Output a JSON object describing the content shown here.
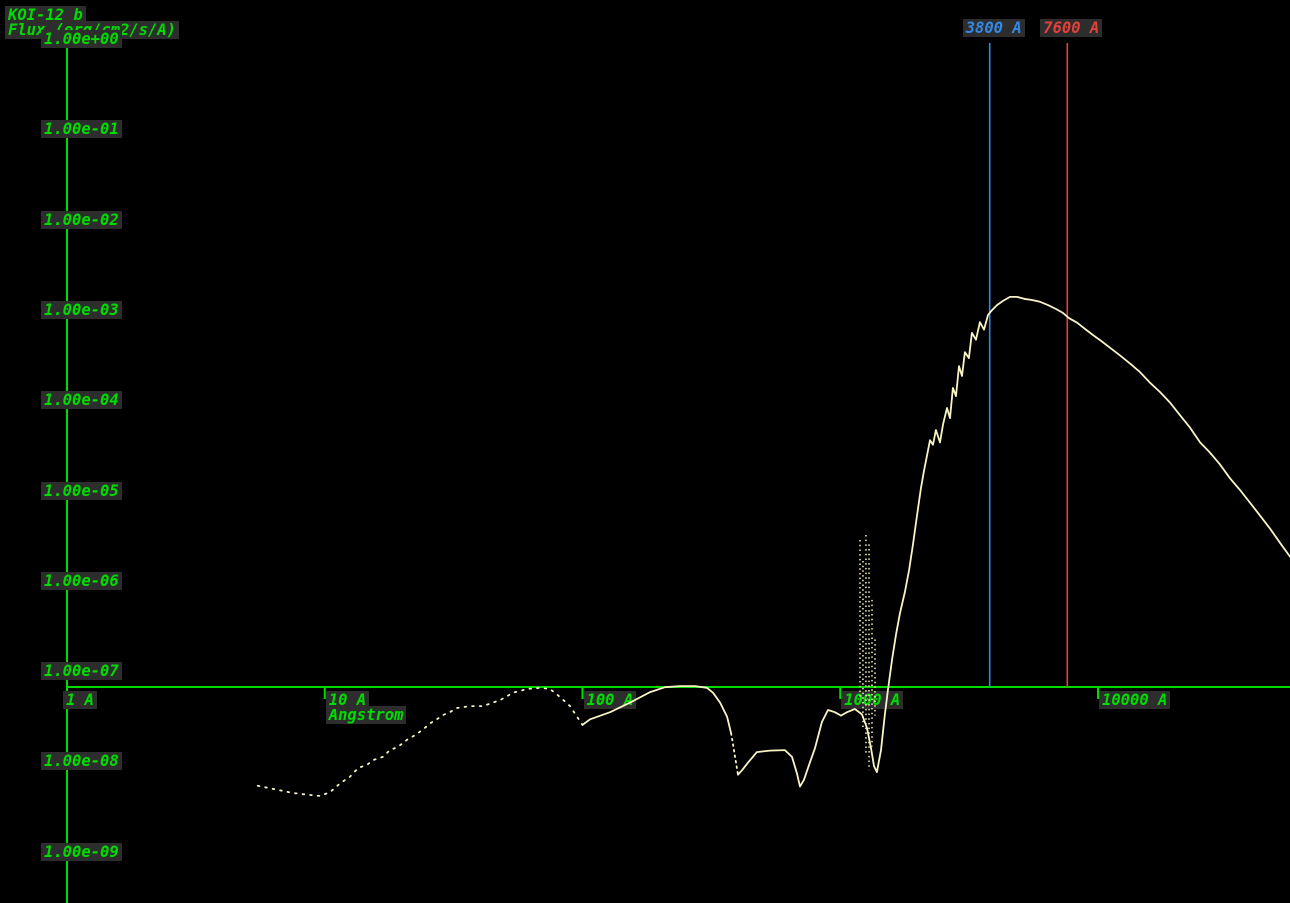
{
  "window": {
    "background": "#000000"
  },
  "chart_data": {
    "type": "line",
    "title": "KOI-12 b",
    "ylabel": "Flux (erg/cm2/s/A)",
    "xlabel": "Angstrom",
    "xlabel_anchor": 10,
    "x_scale": "log",
    "y_scale": "log",
    "xlim": [
      1,
      56000
    ],
    "ylim": [
      1e-09,
      1
    ],
    "grid": false,
    "legend": false,
    "background": "#000000",
    "axis_color": "#00DC00",
    "text_color": "#00DC00",
    "label_bg": "#2D2D2D",
    "curve_color": "#F9F4C6",
    "x_ticks": [
      {
        "label": "1 A",
        "value": 1
      },
      {
        "label": "10 A",
        "value": 10
      },
      {
        "label": "100 A",
        "value": 100
      },
      {
        "label": "1000 A",
        "value": 1000
      },
      {
        "label": "10000 A",
        "value": 10000
      }
    ],
    "y_ticks": [
      {
        "label": "1.00e+00",
        "value": 1.0
      },
      {
        "label": "1.00e-01",
        "value": 0.1
      },
      {
        "label": "1.00e-02",
        "value": 0.01
      },
      {
        "label": "1.00e-03",
        "value": 0.001
      },
      {
        "label": "1.00e-04",
        "value": 0.0001
      },
      {
        "label": "1.00e-05",
        "value": 1e-05
      },
      {
        "label": "1.00e-06",
        "value": 1e-06
      },
      {
        "label": "1.00e-07",
        "value": 1e-07
      },
      {
        "label": "1.00e-08",
        "value": 1e-08
      },
      {
        "label": "1.00e-09",
        "value": 1e-09
      }
    ],
    "reference_lines": [
      {
        "label": "3800 A",
        "value": 3800,
        "color": "#3388E5"
      },
      {
        "label": "7600 A",
        "value": 7600,
        "color": "#E2403A"
      }
    ],
    "series": [
      {
        "name": "spectrum-xray-dotted",
        "style": "dotted",
        "points": [
          [
            5.5,
            5.5e-09
          ],
          [
            6.5,
            5e-09
          ],
          [
            7.5,
            4.6e-09
          ],
          [
            8.5,
            4.4e-09
          ],
          [
            9.6,
            4.25e-09
          ],
          [
            10.5,
            4.7e-09
          ],
          [
            11.5,
            5.9e-09
          ],
          [
            12.5,
            6.9e-09
          ],
          [
            13.5,
            8.7e-09
          ],
          [
            14.6,
            9.4e-09
          ],
          [
            15.4,
            1.06e-08
          ],
          [
            16.8,
            1.15e-08
          ],
          [
            17.9,
            1.37e-08
          ],
          [
            19.2,
            1.48e-08
          ],
          [
            20.8,
            1.77e-08
          ],
          [
            22.4,
            2e-08
          ],
          [
            24.0,
            2.3e-08
          ],
          [
            25.6,
            2.7e-08
          ],
          [
            27.2,
            3e-08
          ],
          [
            28.8,
            3.35e-08
          ],
          [
            30.6,
            3.6e-08
          ],
          [
            32.6,
            4e-08
          ],
          [
            36.6,
            4.2e-08
          ],
          [
            41.1,
            4.2e-08
          ],
          [
            47.9,
            4.9e-08
          ],
          [
            53.7,
            5.9e-08
          ],
          [
            60.9,
            6.5e-08
          ],
          [
            68.4,
            6.7e-08
          ],
          [
            74.8,
            6.5e-08
          ],
          [
            81.8,
            5.3e-08
          ],
          [
            89.4,
            4.2e-08
          ],
          [
            95.3,
            3.2e-08
          ],
          [
            100,
            2.6e-08
          ]
        ]
      },
      {
        "name": "spectrum-euv-solid",
        "style": "solid",
        "points": [
          [
            100,
            2.6e-08
          ],
          [
            107,
            3e-08
          ],
          [
            128,
            3.6e-08
          ],
          [
            153,
            4.6e-08
          ],
          [
            183,
            6e-08
          ],
          [
            209,
            6.8e-08
          ],
          [
            239,
            7e-08
          ],
          [
            273,
            7e-08
          ],
          [
            304,
            6.7e-08
          ],
          [
            321,
            5.9e-08
          ],
          [
            342,
            4.6e-08
          ],
          [
            364,
            3.2e-08
          ],
          [
            377,
            2.1e-08
          ]
        ]
      },
      {
        "name": "spectrum-drop-dotted",
        "style": "dotted-fine",
        "points": [
          [
            377,
            2.1e-08
          ],
          [
            385,
            1.5e-08
          ],
          [
            395,
            9.5e-09
          ],
          [
            401,
            7.3e-09
          ]
        ]
      },
      {
        "name": "spectrum-main-solid",
        "style": "solid",
        "points": [
          [
            401,
            7.3e-09
          ],
          [
            416,
            8.2e-09
          ],
          [
            438,
            9.9e-09
          ],
          [
            475,
            1.3e-08
          ],
          [
            533,
            1.35e-08
          ],
          [
            610,
            1.37e-08
          ],
          [
            650,
            1.15e-08
          ],
          [
            679,
            7.6e-09
          ],
          [
            698,
            5.4e-09
          ],
          [
            723,
            6.4e-09
          ],
          [
            757,
            9.4e-09
          ],
          [
            798,
            1.44e-08
          ],
          [
            849,
            2.8e-08
          ],
          [
            896,
            3.8e-08
          ],
          [
            953,
            3.6e-08
          ],
          [
            1007,
            3.3e-08
          ],
          [
            1062,
            3.6e-08
          ],
          [
            1140,
            3.9e-08
          ],
          [
            1214,
            3.4e-08
          ],
          [
            1270,
            2.4e-08
          ],
          [
            1316,
            1.44e-08
          ],
          [
            1352,
            9.1e-09
          ],
          [
            1387,
            7.8e-09
          ],
          [
            1439,
            1.37e-08
          ],
          [
            1489,
            3.35e-08
          ],
          [
            1531,
            6.3e-08
          ],
          [
            1588,
            1.36e-07
          ],
          [
            1645,
            2.6e-07
          ],
          [
            1706,
            4.5e-07
          ],
          [
            1782,
            7.7e-07
          ],
          [
            1849,
            1.35e-06
          ],
          [
            1915,
            2.6e-06
          ],
          [
            1986,
            5.5e-06
          ],
          [
            2057,
            1.1e-05
          ],
          [
            2113,
            1.7e-05
          ],
          [
            2170,
            2.5e-05
          ],
          [
            2230,
            3.7e-05
          ],
          [
            2291,
            3.3e-05
          ],
          [
            2350,
            4.8e-05
          ],
          [
            2438,
            3.5e-05
          ],
          [
            2503,
            5.5e-05
          ],
          [
            2596,
            8.4e-05
          ],
          [
            2665,
            6.5e-05
          ],
          [
            2736,
            0.00014
          ],
          [
            2813,
            0.000114
          ],
          [
            2888,
            0.000245
          ],
          [
            2967,
            0.00019
          ],
          [
            3046,
            0.00035
          ],
          [
            3157,
            0.0003
          ],
          [
            3243,
            0.00057
          ],
          [
            3363,
            0.00048
          ],
          [
            3483,
            0.00075
          ],
          [
            3613,
            0.00062
          ],
          [
            3742,
            0.0009
          ],
          [
            3884,
            0.00102
          ],
          [
            4057,
            0.00116
          ],
          [
            4280,
            0.00129
          ],
          [
            4558,
            0.00143
          ],
          [
            4852,
            0.00143
          ],
          [
            5163,
            0.00136
          ],
          [
            5546,
            0.00132
          ],
          [
            5957,
            0.00126
          ],
          [
            6398,
            0.00116
          ],
          [
            6872,
            0.00105
          ],
          [
            7311,
            0.00095
          ],
          [
            7723,
            0.00083
          ],
          [
            8297,
            0.00074
          ],
          [
            8912,
            0.00063
          ],
          [
            9572,
            0.00054
          ],
          [
            10280,
            0.000465
          ],
          [
            11141,
            0.00039
          ],
          [
            12190,
            0.00032
          ],
          [
            13337,
            0.00026
          ],
          [
            14554,
            0.00021
          ],
          [
            15925,
            0.00016
          ],
          [
            17423,
            0.000126
          ],
          [
            19055,
            9.6e-05
          ],
          [
            20800,
            7e-05
          ],
          [
            22747,
            5.1e-05
          ],
          [
            24889,
            3.5e-05
          ],
          [
            27164,
            2.7e-05
          ],
          [
            29717,
            2e-05
          ],
          [
            32508,
            1.4e-05
          ],
          [
            35563,
            1.04e-05
          ],
          [
            38906,
            7.5e-06
          ],
          [
            42563,
            5.4e-06
          ],
          [
            46463,
            3.9e-06
          ],
          [
            50815,
            2.7e-06
          ],
          [
            55590,
            1.9e-06
          ]
        ]
      }
    ],
    "spikes": [
      {
        "wavelength": 1193,
        "flux_top": 2.9e-06,
        "flux_bottom": 4.9e-08
      },
      {
        "wavelength": 1225,
        "flux_top": 1.7e-06,
        "flux_bottom": 2.3e-08
      },
      {
        "wavelength": 1258,
        "flux_top": 3.3e-06,
        "flux_bottom": 1.2e-08
      },
      {
        "wavelength": 1293,
        "flux_top": 2.6e-06,
        "flux_bottom": 8.2e-09
      },
      {
        "wavelength": 1328,
        "flux_top": 6.3e-07,
        "flux_bottom": 1.5e-08
      },
      {
        "wavelength": 1364,
        "flux_top": 2.3e-07,
        "flux_bottom": 3.3e-08
      }
    ]
  }
}
